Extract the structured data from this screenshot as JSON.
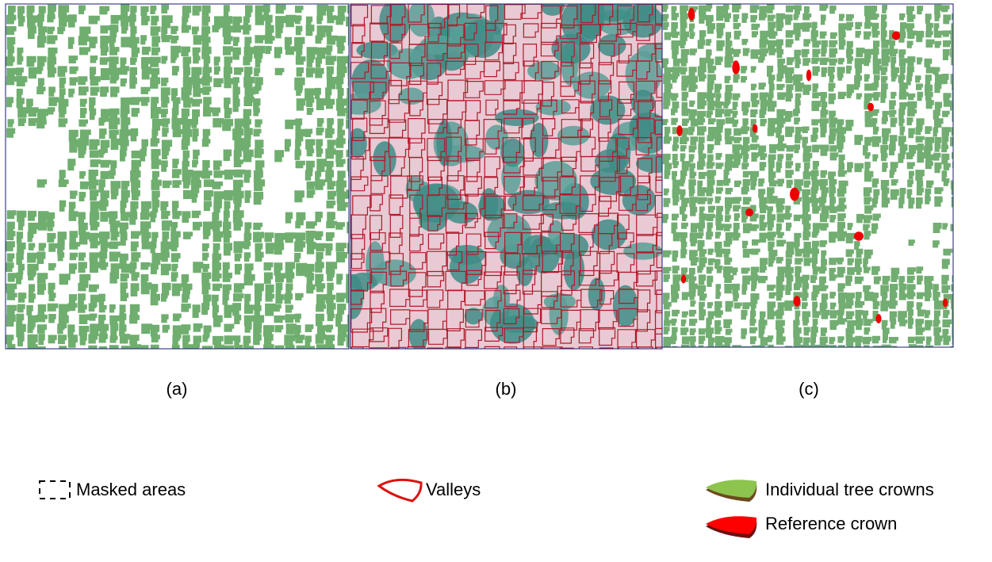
{
  "panels": [
    {
      "label": "(a)"
    },
    {
      "label": "(b)"
    },
    {
      "label": "(c)"
    }
  ],
  "legend": [
    {
      "label": "Masked areas"
    },
    {
      "label": "Valleys"
    },
    {
      "label": "Individual tree crowns"
    },
    {
      "label": "Reference crown"
    }
  ]
}
